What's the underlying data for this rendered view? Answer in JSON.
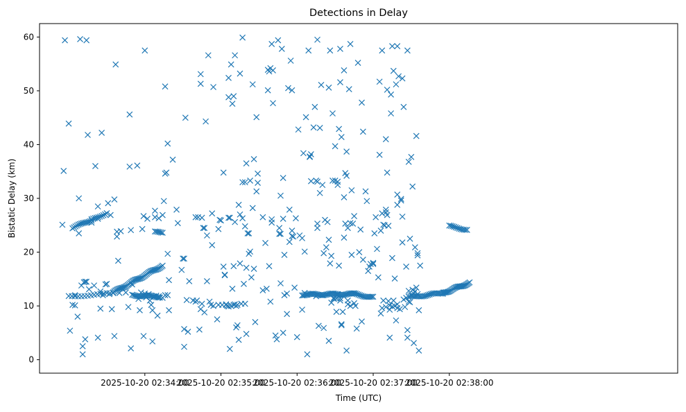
{
  "chart_data": {
    "type": "scatter",
    "title": "Detections in Delay",
    "xlabel": "Time (UTC)",
    "ylabel": "Bistatic Delay (km)",
    "marker": "x",
    "color": "#1f77b4",
    "xlim": [
      -83,
      420
    ],
    "ylim": [
      -2.5,
      62.5
    ],
    "xticks": [
      {
        "value": 0,
        "label": "2025-10-20 02:34:00"
      },
      {
        "value": 60,
        "label": "2025-10-20 02:35:00"
      },
      {
        "value": 120,
        "label": "2025-10-20 02:36:00"
      },
      {
        "value": 180,
        "label": "2025-10-20 02:37:00"
      },
      {
        "value": 240,
        "label": "2025-10-20 02:38:00"
      }
    ],
    "yticks": [
      0,
      10,
      20,
      30,
      40,
      50,
      60
    ],
    "tracks": [
      {
        "name": "track-a",
        "x_start": -60,
        "x_end": -25,
        "y_start": 11.8,
        "y_end": 12.3,
        "count": 15
      },
      {
        "name": "track-b",
        "x_start": -57,
        "x_end": -42,
        "y_start": 24.5,
        "y_end": 26.0,
        "count": 14
      },
      {
        "name": "track-c",
        "x_start": -42,
        "x_end": -30,
        "y_start": 26.0,
        "y_end": 27.3,
        "count": 10
      },
      {
        "name": "track-d",
        "x_start": -25,
        "x_end": 14,
        "y_start": 12.5,
        "y_end": 17.5,
        "count": 45
      },
      {
        "name": "track-e",
        "x_start": -10,
        "x_end": 12,
        "y_start": 12.0,
        "y_end": 11.7,
        "count": 22
      },
      {
        "name": "track-f",
        "x_start": 8,
        "x_end": 14,
        "y_start": 23.7,
        "y_end": 23.7,
        "count": 6
      },
      {
        "name": "track-g",
        "x_start": 124,
        "x_end": 165,
        "y_start": 12.1,
        "y_end": 12.2,
        "count": 40
      },
      {
        "name": "track-h",
        "x_start": 165,
        "x_end": 180,
        "y_start": 12.2,
        "y_end": 11.6,
        "count": 14
      },
      {
        "name": "track-i",
        "x_start": 208,
        "x_end": 235,
        "y_start": 11.6,
        "y_end": 12.4,
        "count": 24
      },
      {
        "name": "track-j",
        "x_start": 235,
        "x_end": 256,
        "y_start": 12.4,
        "y_end": 14.3,
        "count": 26
      },
      {
        "name": "track-k",
        "x_start": 240,
        "x_end": 254,
        "y_start": 24.8,
        "y_end": 24.2,
        "count": 12
      }
    ],
    "points": [
      [
        -63,
        59.4
      ],
      [
        -64,
        35.1
      ],
      [
        -65,
        25.1
      ],
      [
        -60,
        43.9
      ],
      [
        -59,
        5.4
      ],
      [
        -57,
        10.2
      ],
      [
        -55,
        10.1
      ],
      [
        -53,
        8.0
      ],
      [
        -51,
        59.6
      ],
      [
        -52,
        30.0
      ],
      [
        -52,
        23.5
      ],
      [
        -49,
        2.5
      ],
      [
        -49,
        1.0
      ],
      [
        -47,
        3.8
      ],
      [
        -46,
        59.4
      ],
      [
        -45,
        41.8
      ],
      [
        -42,
        25.5
      ],
      [
        -39,
        36.0
      ],
      [
        -37,
        28.5
      ],
      [
        -37,
        26.2
      ],
      [
        -37,
        4.1
      ],
      [
        -35,
        9.5
      ],
      [
        -34,
        42.2
      ],
      [
        -33,
        12.0
      ],
      [
        -31,
        14.0
      ],
      [
        -29,
        29.1
      ],
      [
        -27,
        26.9
      ],
      [
        -26,
        9.4
      ],
      [
        -24,
        4.4
      ],
      [
        -24,
        29.8
      ],
      [
        -23,
        54.9
      ],
      [
        -22,
        22.9
      ],
      [
        -22,
        23.8
      ],
      [
        -21,
        18.4
      ],
      [
        -19,
        23.9
      ],
      [
        -12,
        45.6
      ],
      [
        -12,
        35.9
      ],
      [
        -11,
        24.1
      ],
      [
        -11,
        2.1
      ],
      [
        -10,
        14.0
      ],
      [
        -6,
        36.1
      ],
      [
        -4,
        9.2
      ],
      [
        -2,
        24.3
      ],
      [
        -1,
        26.7
      ],
      [
        0,
        57.5
      ],
      [
        -1,
        4.4
      ],
      [
        2,
        26.2
      ],
      [
        4,
        11.0
      ],
      [
        5,
        10.2
      ],
      [
        6,
        3.4
      ],
      [
        8,
        27.7
      ],
      [
        8,
        26.5
      ],
      [
        10,
        8.2
      ],
      [
        11,
        26.3
      ],
      [
        14,
        26.9
      ],
      [
        15,
        29.5
      ],
      [
        16,
        50.8
      ],
      [
        16,
        34.6
      ],
      [
        17,
        34.8
      ],
      [
        18,
        40.2
      ],
      [
        18,
        19.7
      ],
      [
        19,
        14.8
      ],
      [
        19,
        9.2
      ],
      [
        18,
        12.0
      ],
      [
        22,
        37.2
      ],
      [
        25,
        27.9
      ],
      [
        26,
        25.4
      ],
      [
        29,
        16.7
      ],
      [
        30,
        18.8
      ],
      [
        31,
        18.8
      ],
      [
        31,
        5.7
      ],
      [
        31,
        2.4
      ],
      [
        32,
        45.0
      ],
      [
        33,
        11.1
      ],
      [
        34,
        5.2
      ],
      [
        35,
        14.6
      ],
      [
        38,
        11.0
      ],
      [
        40,
        26.5
      ],
      [
        42,
        26.5
      ],
      [
        43,
        5.6
      ],
      [
        44,
        9.4
      ],
      [
        44,
        53.1
      ],
      [
        44,
        51.3
      ],
      [
        45,
        26.4
      ],
      [
        46,
        24.5
      ],
      [
        47,
        24.5
      ],
      [
        47,
        8.8
      ],
      [
        48,
        44.3
      ],
      [
        49,
        14.6
      ],
      [
        49,
        23.1
      ],
      [
        50,
        56.6
      ],
      [
        51,
        10.8
      ],
      [
        53,
        27.2
      ],
      [
        53,
        21.3
      ],
      [
        54,
        50.7
      ],
      [
        57,
        7.5
      ],
      [
        58,
        24.3
      ],
      [
        59,
        26.0
      ],
      [
        60,
        25.9
      ],
      [
        61,
        10.2
      ],
      [
        62,
        17.3
      ],
      [
        62,
        34.8
      ],
      [
        63,
        15.7
      ],
      [
        63,
        15.8
      ],
      [
        64,
        10.2
      ],
      [
        65,
        10.0
      ],
      [
        66,
        52.4
      ],
      [
        66,
        48.8
      ],
      [
        66,
        26.4
      ],
      [
        67,
        26.4
      ],
      [
        67,
        2.0
      ],
      [
        68,
        54.9
      ],
      [
        69,
        47.6
      ],
      [
        69,
        13.2
      ],
      [
        70,
        17.4
      ],
      [
        70,
        49.0
      ],
      [
        71,
        56.6
      ],
      [
        71,
        25.6
      ],
      [
        72,
        6.0
      ],
      [
        73,
        6.4
      ],
      [
        73,
        10.2
      ],
      [
        74,
        3.7
      ],
      [
        74,
        28.8
      ],
      [
        75,
        53.2
      ],
      [
        75,
        17.9
      ],
      [
        75,
        27.0
      ],
      [
        76,
        10.4
      ],
      [
        77,
        59.9
      ],
      [
        77,
        33.0
      ],
      [
        77,
        26.3
      ],
      [
        78,
        14.1
      ],
      [
        79,
        33.0
      ],
      [
        79,
        24.8
      ],
      [
        79,
        10.4
      ],
      [
        80,
        36.5
      ],
      [
        80,
        4.8
      ],
      [
        80,
        17.1
      ],
      [
        81,
        23.5
      ],
      [
        82,
        23.5
      ],
      [
        82,
        19.7
      ],
      [
        83,
        20.1
      ],
      [
        83,
        33.3
      ],
      [
        84,
        15.3
      ],
      [
        85,
        51.2
      ],
      [
        85,
        28.2
      ],
      [
        86,
        37.3
      ],
      [
        86,
        16.9
      ],
      [
        87,
        7.0
      ],
      [
        88,
        45.1
      ],
      [
        88,
        31.3
      ],
      [
        89,
        32.9
      ],
      [
        89,
        34.6
      ],
      [
        93,
        26.5
      ],
      [
        93,
        12.9
      ],
      [
        95,
        21.7
      ],
      [
        96,
        13.2
      ],
      [
        97,
        50.1
      ],
      [
        97,
        53.9
      ],
      [
        98,
        53.6
      ],
      [
        98,
        17.4
      ],
      [
        99,
        10.8
      ],
      [
        99,
        54.2
      ],
      [
        100,
        58.7
      ],
      [
        100,
        25.5
      ],
      [
        100,
        26.1
      ],
      [
        101,
        53.8
      ],
      [
        101,
        47.7
      ],
      [
        103,
        4.5
      ],
      [
        104,
        3.8
      ],
      [
        105,
        59.4
      ],
      [
        106,
        23.4
      ],
      [
        106,
        24.5
      ],
      [
        107,
        23.4
      ],
      [
        107,
        14.2
      ],
      [
        107,
        30.5
      ],
      [
        108,
        57.8
      ],
      [
        109,
        33.8
      ],
      [
        109,
        26.2
      ],
      [
        109,
        5.0
      ],
      [
        110,
        19.5
      ],
      [
        112,
        8.5
      ],
      [
        113,
        50.5
      ],
      [
        114,
        27.9
      ],
      [
        114,
        21.9
      ],
      [
        115,
        55.6
      ],
      [
        116,
        50.1
      ],
      [
        116,
        23.0
      ],
      [
        116,
        24.0
      ],
      [
        117,
        22.9
      ],
      [
        118,
        13.4
      ],
      [
        119,
        26.3
      ],
      [
        120,
        4.2
      ],
      [
        121,
        42.8
      ],
      [
        122,
        23.1
      ],
      [
        124,
        22.6
      ],
      [
        125,
        38.4
      ],
      [
        124,
        9.3
      ],
      [
        126,
        20.1
      ],
      [
        127,
        45.1
      ],
      [
        128,
        1.0
      ],
      [
        129,
        57.5
      ],
      [
        130,
        37.7
      ],
      [
        130,
        37.8
      ],
      [
        131,
        38.2
      ],
      [
        131,
        33.2
      ],
      [
        133,
        43.2
      ],
      [
        134,
        47.0
      ],
      [
        135,
        33.3
      ],
      [
        136,
        59.5
      ],
      [
        136,
        33.1
      ],
      [
        136,
        24.5
      ],
      [
        136,
        25.3
      ],
      [
        137,
        6.3
      ],
      [
        138,
        43.1
      ],
      [
        138,
        31.0
      ],
      [
        139,
        51.1
      ],
      [
        140,
        32.5
      ],
      [
        141,
        5.9
      ],
      [
        141,
        19.8
      ],
      [
        142,
        26.0
      ],
      [
        143,
        20.9
      ],
      [
        144,
        25.6
      ],
      [
        145,
        3.5
      ],
      [
        145,
        22.3
      ],
      [
        145,
        50.6
      ],
      [
        146,
        17.9
      ],
      [
        146,
        57.5
      ],
      [
        147,
        19.3
      ],
      [
        147,
        10.6
      ],
      [
        148,
        45.8
      ],
      [
        148,
        33.3
      ],
      [
        150,
        39.7
      ],
      [
        150,
        33.3
      ],
      [
        151,
        8.9
      ],
      [
        152,
        33.1
      ],
      [
        152,
        32.5
      ],
      [
        153,
        17.5
      ],
      [
        153,
        42.9
      ],
      [
        154,
        57.8
      ],
      [
        154,
        51.6
      ],
      [
        155,
        41.4
      ],
      [
        155,
        6.6
      ],
      [
        155,
        6.4
      ],
      [
        156,
        8.9
      ],
      [
        157,
        53.8
      ],
      [
        157,
        30.2
      ],
      [
        157,
        22.7
      ],
      [
        158,
        34.7
      ],
      [
        158,
        25.3
      ],
      [
        159,
        34.2
      ],
      [
        159,
        38.7
      ],
      [
        159,
        1.7
      ],
      [
        160,
        24.5
      ],
      [
        160,
        11.0
      ],
      [
        161,
        50.3
      ],
      [
        162,
        58.7
      ],
      [
        162,
        25.4
      ],
      [
        163,
        31.5
      ],
      [
        163,
        19.5
      ],
      [
        164,
        25.3
      ],
      [
        165,
        10.5
      ],
      [
        165,
        26.7
      ],
      [
        166,
        10.0
      ],
      [
        167,
        5.8
      ],
      [
        168,
        55.2
      ],
      [
        169,
        20.0
      ],
      [
        170,
        24.2
      ],
      [
        171,
        47.8
      ],
      [
        171,
        7.1
      ],
      [
        172,
        42.4
      ],
      [
        172,
        18.6
      ],
      [
        174,
        31.3
      ],
      [
        175,
        29.5
      ],
      [
        176,
        16.5
      ],
      [
        177,
        17.3
      ],
      [
        178,
        17.8
      ],
      [
        180,
        17.8
      ],
      [
        180,
        18.0
      ],
      [
        181,
        23.5
      ],
      [
        182,
        26.5
      ],
      [
        183,
        20.6
      ],
      [
        184,
        15.3
      ],
      [
        185,
        51.7
      ],
      [
        185,
        38.1
      ],
      [
        186,
        24.0
      ],
      [
        187,
        57.5
      ],
      [
        187,
        27.2
      ],
      [
        188,
        25.1
      ],
      [
        189,
        25.0
      ],
      [
        190,
        27.9
      ],
      [
        190,
        41.0
      ],
      [
        190,
        27.4
      ],
      [
        191,
        34.8
      ],
      [
        191,
        50.2
      ],
      [
        191,
        26.9
      ],
      [
        192,
        24.9
      ],
      [
        193,
        4.1
      ],
      [
        194,
        49.3
      ],
      [
        194,
        45.8
      ],
      [
        195,
        58.3
      ],
      [
        195,
        18.9
      ],
      [
        196,
        53.7
      ],
      [
        197,
        15.1
      ],
      [
        198,
        7.3
      ],
      [
        198,
        51.2
      ],
      [
        199,
        58.3
      ],
      [
        199,
        30.7
      ],
      [
        199,
        28.8
      ],
      [
        200,
        52.7
      ],
      [
        202,
        29.9
      ],
      [
        202,
        29.6
      ],
      [
        203,
        26.6
      ],
      [
        203,
        21.8
      ],
      [
        203,
        52.3
      ],
      [
        204,
        47.0
      ],
      [
        206,
        17.3
      ],
      [
        207,
        5.5
      ],
      [
        207,
        57.5
      ],
      [
        207,
        4.1
      ],
      [
        208,
        12.8
      ],
      [
        208,
        36.8
      ],
      [
        209,
        22.5
      ],
      [
        209,
        10.7
      ],
      [
        210,
        37.7
      ],
      [
        211,
        32.2
      ],
      [
        212,
        3.1
      ],
      [
        213,
        20.9
      ],
      [
        214,
        41.6
      ],
      [
        215,
        19.4
      ],
      [
        215,
        19.8
      ],
      [
        215,
        12.2
      ],
      [
        216,
        9.2
      ],
      [
        216,
        1.7
      ],
      [
        217,
        17.5
      ],
      [
        186,
        8.6
      ],
      [
        187,
        9.6
      ],
      [
        188,
        11.0
      ],
      [
        190,
        9.8
      ],
      [
        192,
        10.9
      ],
      [
        193,
        9.3
      ],
      [
        193,
        10.1
      ],
      [
        195,
        9.9
      ],
      [
        196,
        11.0
      ],
      [
        197,
        10.0
      ],
      [
        199,
        9.6
      ],
      [
        199,
        10.3
      ],
      [
        201,
        9.4
      ],
      [
        204,
        11.2
      ],
      [
        205,
        9.8
      ],
      [
        206,
        11.5
      ],
      [
        208,
        10.8
      ],
      [
        210,
        12.0
      ],
      [
        211,
        13.0
      ],
      [
        212,
        12.3
      ],
      [
        213,
        12.7
      ],
      [
        214,
        13.4
      ],
      [
        -55,
        12.0
      ],
      [
        -50,
        13.8
      ],
      [
        -48,
        14.4
      ],
      [
        -47,
        14.5
      ],
      [
        -46,
        14.5
      ],
      [
        -44,
        13.1
      ],
      [
        -40,
        13.8
      ],
      [
        -35,
        12.7
      ],
      [
        -30,
        14.1
      ],
      [
        -28,
        12.2
      ],
      [
        -20,
        12.4
      ],
      [
        -15,
        12.5
      ],
      [
        -13,
        9.8
      ],
      [
        -5,
        11.3
      ],
      [
        -3,
        12.5
      ],
      [
        0,
        12.3
      ],
      [
        1,
        11.6
      ],
      [
        3,
        12.2
      ],
      [
        6,
        9.2
      ],
      [
        7,
        11.7
      ],
      [
        9,
        11.9
      ],
      [
        11,
        11.8
      ],
      [
        14,
        11.5
      ],
      [
        16,
        12.0
      ],
      [
        40,
        10.8
      ],
      [
        41,
        11.0
      ],
      [
        45,
        10.4
      ],
      [
        52,
        10.2
      ],
      [
        54,
        10.0
      ],
      [
        58,
        10.2
      ],
      [
        64,
        10.3
      ],
      [
        66,
        9.9
      ],
      [
        68,
        10.0
      ],
      [
        70,
        10.2
      ],
      [
        71,
        10.3
      ],
      [
        72,
        10.0
      ],
      [
        110,
        12.0
      ],
      [
        112,
        12.3
      ],
      [
        126,
        12.4
      ],
      [
        128,
        12.1
      ],
      [
        135,
        11.8
      ],
      [
        140,
        12.0
      ],
      [
        149,
        11.3
      ],
      [
        149,
        11.5
      ],
      [
        151,
        11.4
      ],
      [
        152,
        12.2
      ],
      [
        154,
        11.4
      ],
      [
        154,
        11.0
      ],
      [
        160,
        10.3
      ],
      [
        162,
        10.0
      ]
    ]
  }
}
